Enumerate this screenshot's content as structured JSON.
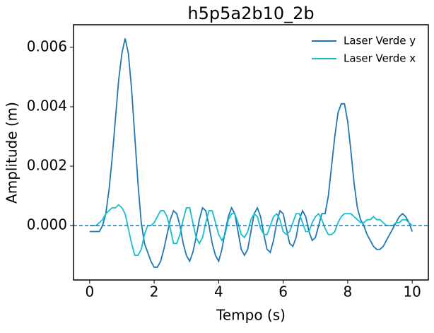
{
  "chart_data": {
    "type": "line",
    "title": "h5p5a2b10_2b",
    "x_label": "Tempo (s)",
    "y_label": "Amplitude (m)",
    "x": [
      0.0,
      0.1,
      0.2,
      0.3,
      0.4,
      0.5,
      0.6,
      0.7,
      0.8,
      0.9,
      1.0,
      1.1,
      1.2,
      1.3,
      1.4,
      1.5,
      1.6,
      1.7,
      1.8,
      1.9,
      2.0,
      2.1,
      2.2,
      2.3,
      2.4,
      2.5,
      2.6,
      2.7,
      2.8,
      2.9,
      3.0,
      3.1,
      3.2,
      3.3,
      3.4,
      3.5,
      3.6,
      3.7,
      3.8,
      3.9,
      4.0,
      4.1,
      4.2,
      4.3,
      4.4,
      4.5,
      4.6,
      4.7,
      4.8,
      4.9,
      5.0,
      5.1,
      5.2,
      5.3,
      5.4,
      5.5,
      5.6,
      5.7,
      5.8,
      5.9,
      6.0,
      6.1,
      6.2,
      6.3,
      6.4,
      6.5,
      6.6,
      6.7,
      6.8,
      6.9,
      7.0,
      7.1,
      7.2,
      7.3,
      7.4,
      7.5,
      7.6,
      7.7,
      7.8,
      7.9,
      8.0,
      8.1,
      8.2,
      8.3,
      8.4,
      8.5,
      8.6,
      8.7,
      8.8,
      8.9,
      9.0,
      9.1,
      9.2,
      9.3,
      9.4,
      9.5,
      9.6,
      9.7,
      9.8,
      9.9,
      10.0
    ],
    "series": [
      {
        "name": "Laser Verde y",
        "color": "#1f77b4",
        "values": [
          -0.0002,
          -0.0002,
          -0.0002,
          -0.0002,
          0.0,
          0.0004,
          0.0012,
          0.0023,
          0.0036,
          0.0049,
          0.0058,
          0.0063,
          0.0058,
          0.0046,
          0.003,
          0.0014,
          0.0001,
          -0.0006,
          -0.0009,
          -0.0012,
          -0.0014,
          -0.0014,
          -0.0012,
          -0.0008,
          -0.0003,
          0.0002,
          0.0005,
          0.0004,
          0.0,
          -0.0006,
          -0.001,
          -0.0012,
          -0.0009,
          -0.0004,
          0.0002,
          0.0006,
          0.0005,
          0.0,
          -0.0006,
          -0.001,
          -0.0012,
          -0.0008,
          -0.0002,
          0.0003,
          0.0006,
          0.0004,
          -0.0002,
          -0.0008,
          -0.001,
          -0.0008,
          -0.0002,
          0.0004,
          0.0006,
          0.0003,
          -0.0003,
          -0.0008,
          -0.0009,
          -0.0005,
          0.0001,
          0.0005,
          0.0004,
          -0.0001,
          -0.0006,
          -0.0007,
          -0.0004,
          0.0002,
          0.0005,
          0.0003,
          -0.0002,
          -0.0005,
          -0.0004,
          0.0,
          0.0004,
          0.0004,
          0.001,
          0.002,
          0.003,
          0.0038,
          0.0041,
          0.0041,
          0.0035,
          0.0025,
          0.0014,
          0.0006,
          0.0002,
          0.0,
          -0.0003,
          -0.0005,
          -0.0007,
          -0.0008,
          -0.0008,
          -0.0007,
          -0.0005,
          -0.0003,
          -0.0001,
          0.0001,
          0.0003,
          0.0004,
          0.0003,
          0.0001,
          -0.0002
        ]
      },
      {
        "name": "Laser Verde x",
        "color": "#17becf",
        "values": [
          0.0,
          0.0,
          0.0,
          0.0001,
          0.0002,
          0.0004,
          0.0005,
          0.0006,
          0.0006,
          0.0007,
          0.0006,
          0.0004,
          -0.0001,
          -0.0006,
          -0.001,
          -0.001,
          -0.0008,
          -0.0003,
          0.0,
          0.0,
          0.0001,
          0.0003,
          0.0005,
          0.0005,
          0.0003,
          -0.0001,
          -0.0006,
          -0.0006,
          -0.0003,
          0.0002,
          0.0006,
          0.0006,
          0.0001,
          -0.0004,
          -0.0006,
          -0.0004,
          0.0001,
          0.0005,
          0.0005,
          0.0001,
          -0.0003,
          -0.0005,
          -0.0003,
          0.0002,
          0.0004,
          0.0004,
          0.0001,
          -0.0003,
          -0.0004,
          -0.0002,
          0.0002,
          0.0004,
          0.0003,
          -0.0001,
          -0.0003,
          -0.0003,
          0.0,
          0.0003,
          0.0004,
          0.0002,
          -0.0002,
          -0.0003,
          -0.0002,
          0.0001,
          0.0004,
          0.0004,
          0.0001,
          -0.0002,
          -0.0002,
          0.0001,
          0.0003,
          0.0004,
          0.0002,
          -0.0001,
          -0.0003,
          -0.0003,
          -0.0002,
          0.0001,
          0.0003,
          0.0004,
          0.0004,
          0.0004,
          0.0003,
          0.0002,
          0.0001,
          0.0001,
          0.0002,
          0.0002,
          0.0003,
          0.0002,
          0.0002,
          0.0001,
          0.0,
          0.0,
          0.0,
          0.0001,
          0.0001,
          0.0002,
          0.0002,
          0.0001,
          0.0
        ]
      }
    ],
    "hline": 0,
    "hline_color": "#1f77b4",
    "xlim": [
      -0.5,
      10.5
    ],
    "ylim": [
      -0.00183,
      0.00676
    ],
    "xticks": [
      0,
      2,
      4,
      6,
      8,
      10
    ],
    "yticks": [
      {
        "value": 0,
        "label": "0.000"
      },
      {
        "value": 0.002,
        "label": "0.002"
      },
      {
        "value": 0.004,
        "label": "0.004"
      },
      {
        "value": 0.006,
        "label": "0.006"
      }
    ],
    "legend": "upper right",
    "grid": false
  }
}
